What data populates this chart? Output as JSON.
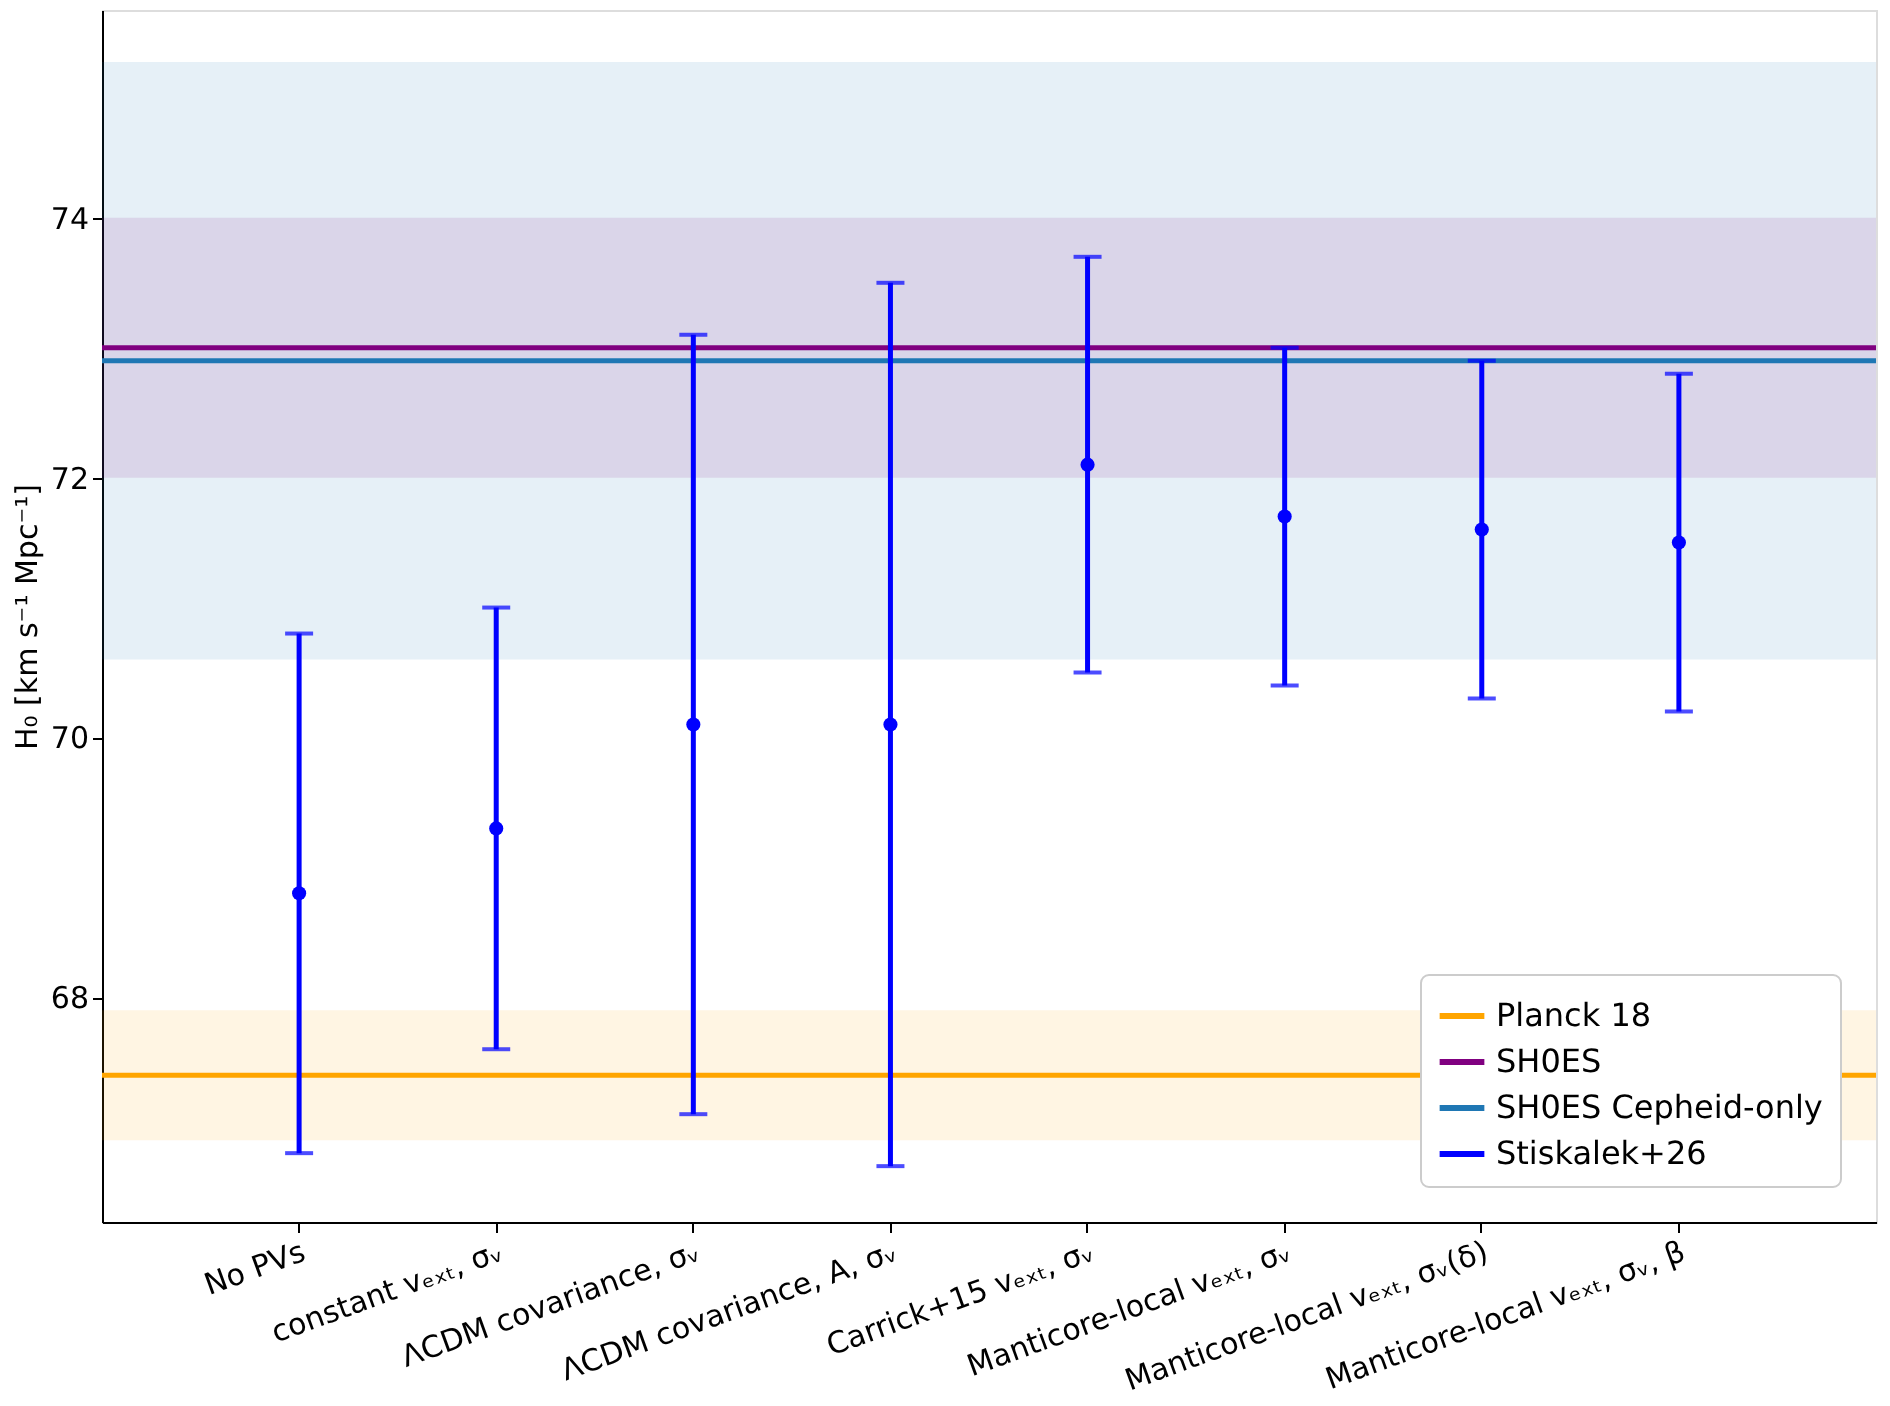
{
  "chart_data": {
    "type": "scatter",
    "ylabel": "H₀ [km s⁻¹ Mpc⁻¹]",
    "categories": [
      "No PVs",
      "constant vₑₓₜ, σᵥ",
      "ΛCDM covariance, σᵥ",
      "ΛCDM covariance, A, σᵥ",
      "Carrick+15 vₑₓₜ, σᵥ",
      "Manticore-local vₑₓₜ, σᵥ",
      "Manticore-local vₑₓₜ, σᵥ(δ)",
      "Manticore-local vₑₓₜ, σᵥ, β"
    ],
    "series": [
      {
        "name": "Stiskalek+26",
        "color": "#0000ff",
        "values": [
          68.8,
          69.3,
          70.1,
          70.1,
          72.1,
          71.7,
          71.6,
          71.5
        ],
        "errors": [
          [
            66.8,
            70.8
          ],
          [
            67.6,
            71.0
          ],
          [
            67.1,
            73.1
          ],
          [
            66.7,
            73.5
          ],
          [
            70.5,
            73.7
          ],
          [
            70.4,
            73.0
          ],
          [
            70.3,
            72.9
          ],
          [
            70.2,
            72.8
          ]
        ]
      }
    ],
    "marker": "circle",
    "ylim": [
      66.27,
      75.6
    ],
    "yticks": [
      68,
      70,
      72,
      74
    ],
    "ref_lines": [
      {
        "axis": "y",
        "value": 67.4,
        "label": "Planck 18",
        "color": "#ffa500"
      },
      {
        "axis": "y",
        "value": 73.0,
        "label": "SH0ES",
        "color": "#800080"
      },
      {
        "axis": "y",
        "value": 72.9,
        "label": "SH0ES Cepheid-only",
        "color": "#1f77b4"
      }
    ],
    "bands": [
      {
        "axis": "y",
        "from": 70.6,
        "to": 75.2,
        "color": "#1f77b4"
      },
      {
        "axis": "y",
        "from": 72.0,
        "to": 74.0,
        "color": "#800080"
      },
      {
        "axis": "y",
        "from": 66.9,
        "to": 67.9,
        "color": "#ffa500"
      }
    ],
    "grid": false,
    "legend": "bottom right"
  }
}
